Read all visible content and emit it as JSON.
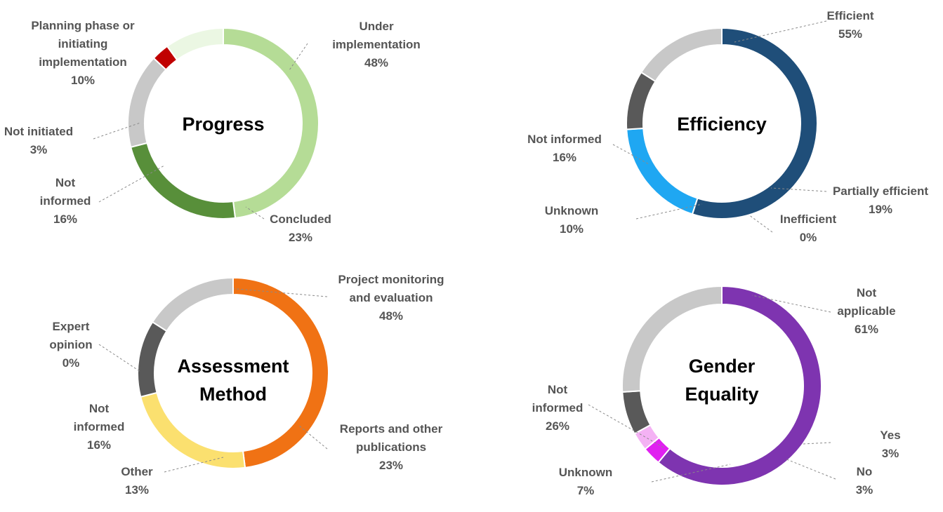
{
  "chart_data": [
    {
      "type": "pie",
      "variant": "donut",
      "title_lines": [
        "Progress"
      ],
      "segments": [
        {
          "label": [
            "Under",
            "implementation",
            "48%"
          ],
          "value": 48,
          "color": "#b5dc96"
        },
        {
          "label": [
            "Concluded",
            "23%"
          ],
          "value": 23,
          "color": "#588f3a"
        },
        {
          "label": [
            "Not",
            "informed",
            "16%"
          ],
          "value": 16,
          "color": "#c8c8c8"
        },
        {
          "label": [
            "Not initiated",
            "3%"
          ],
          "value": 3,
          "color": "#c00000"
        },
        {
          "label": [
            "Planning phase or",
            "initiating",
            "implementation",
            "10%"
          ],
          "value": 10,
          "color": "#ebf7e3"
        }
      ]
    },
    {
      "type": "pie",
      "variant": "donut",
      "title_lines": [
        "Efficiency"
      ],
      "segments": [
        {
          "label": [
            "Efficient",
            "55%"
          ],
          "value": 55,
          "color": "#1f4e79"
        },
        {
          "label": [
            "Partially efficient",
            "19%"
          ],
          "value": 19,
          "color": "#1fa7f2"
        },
        {
          "label": [
            "Inefficient",
            "0%"
          ],
          "value": 0,
          "color": "#5b9bd5"
        },
        {
          "label": [
            "Unknown",
            "10%"
          ],
          "value": 10,
          "color": "#595959"
        },
        {
          "label": [
            "Not informed",
            "16%"
          ],
          "value": 16,
          "color": "#c8c8c8"
        }
      ]
    },
    {
      "type": "pie",
      "variant": "donut",
      "title_lines": [
        "Assessment",
        "Method"
      ],
      "segments": [
        {
          "label": [
            "Project monitoring",
            "and evaluation",
            "48%"
          ],
          "value": 48,
          "color": "#f07214"
        },
        {
          "label": [
            "Reports and other",
            "publications",
            "23%"
          ],
          "value": 23,
          "color": "#fbe06f"
        },
        {
          "label": [
            "Other",
            "13%"
          ],
          "value": 13,
          "color": "#595959"
        },
        {
          "label": [
            "Not",
            "informed",
            "16%"
          ],
          "value": 16,
          "color": "#c8c8c8"
        },
        {
          "label": [
            "Expert",
            "opinion",
            "0%"
          ],
          "value": 0,
          "color": "#c55a11"
        }
      ]
    },
    {
      "type": "pie",
      "variant": "donut",
      "title_lines": [
        "Gender",
        "Equality"
      ],
      "segments": [
        {
          "label": [
            "Not",
            "applicable",
            "61%"
          ],
          "value": 61,
          "color": "#7e34b0"
        },
        {
          "label": [
            "Yes",
            "3%"
          ],
          "value": 3,
          "color": "#e020f0"
        },
        {
          "label": [
            "No",
            "3%"
          ],
          "value": 3,
          "color": "#f4b2f4"
        },
        {
          "label": [
            "Unknown",
            "7%"
          ],
          "value": 7,
          "color": "#595959"
        },
        {
          "label": [
            "Not",
            "informed",
            "26%"
          ],
          "value": 26,
          "color": "#c8c8c8"
        }
      ]
    }
  ]
}
